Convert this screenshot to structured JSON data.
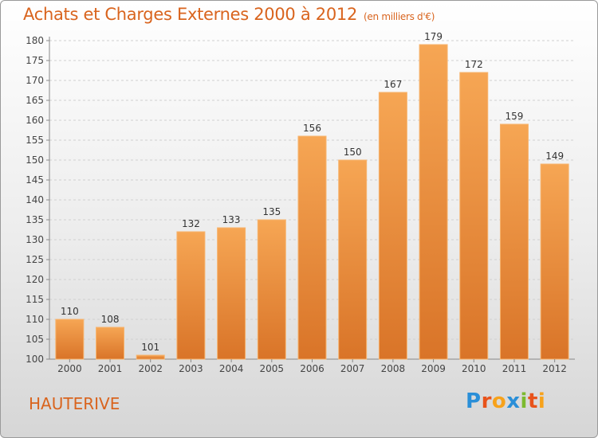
{
  "chart_data": {
    "type": "bar",
    "title": "Achats et Charges Externes 2000 à 2012",
    "unit_note": "(en milliers d'€)",
    "categories": [
      "2000",
      "2001",
      "2002",
      "2003",
      "2004",
      "2005",
      "2006",
      "2007",
      "2008",
      "2009",
      "2010",
      "2011",
      "2012"
    ],
    "values": [
      110,
      108,
      101,
      132,
      133,
      135,
      156,
      150,
      167,
      179,
      172,
      159,
      149
    ],
    "ylim": [
      100,
      180
    ],
    "yticks": [
      100,
      105,
      110,
      115,
      120,
      125,
      130,
      135,
      140,
      145,
      150,
      155,
      160,
      165,
      170,
      175,
      180
    ],
    "xlabel": "",
    "ylabel": "",
    "grid": true,
    "bar_color": "#f0923a"
  },
  "commune": "HAUTERIVE",
  "logo": {
    "letters": [
      "P",
      "r",
      "o",
      "x",
      "i",
      "t",
      "i"
    ],
    "colors": [
      "#2a8fd8",
      "#e8531b",
      "#f7a21b",
      "#2a8fd8",
      "#7cba2f",
      "#e8531b",
      "#f7a21b"
    ]
  }
}
